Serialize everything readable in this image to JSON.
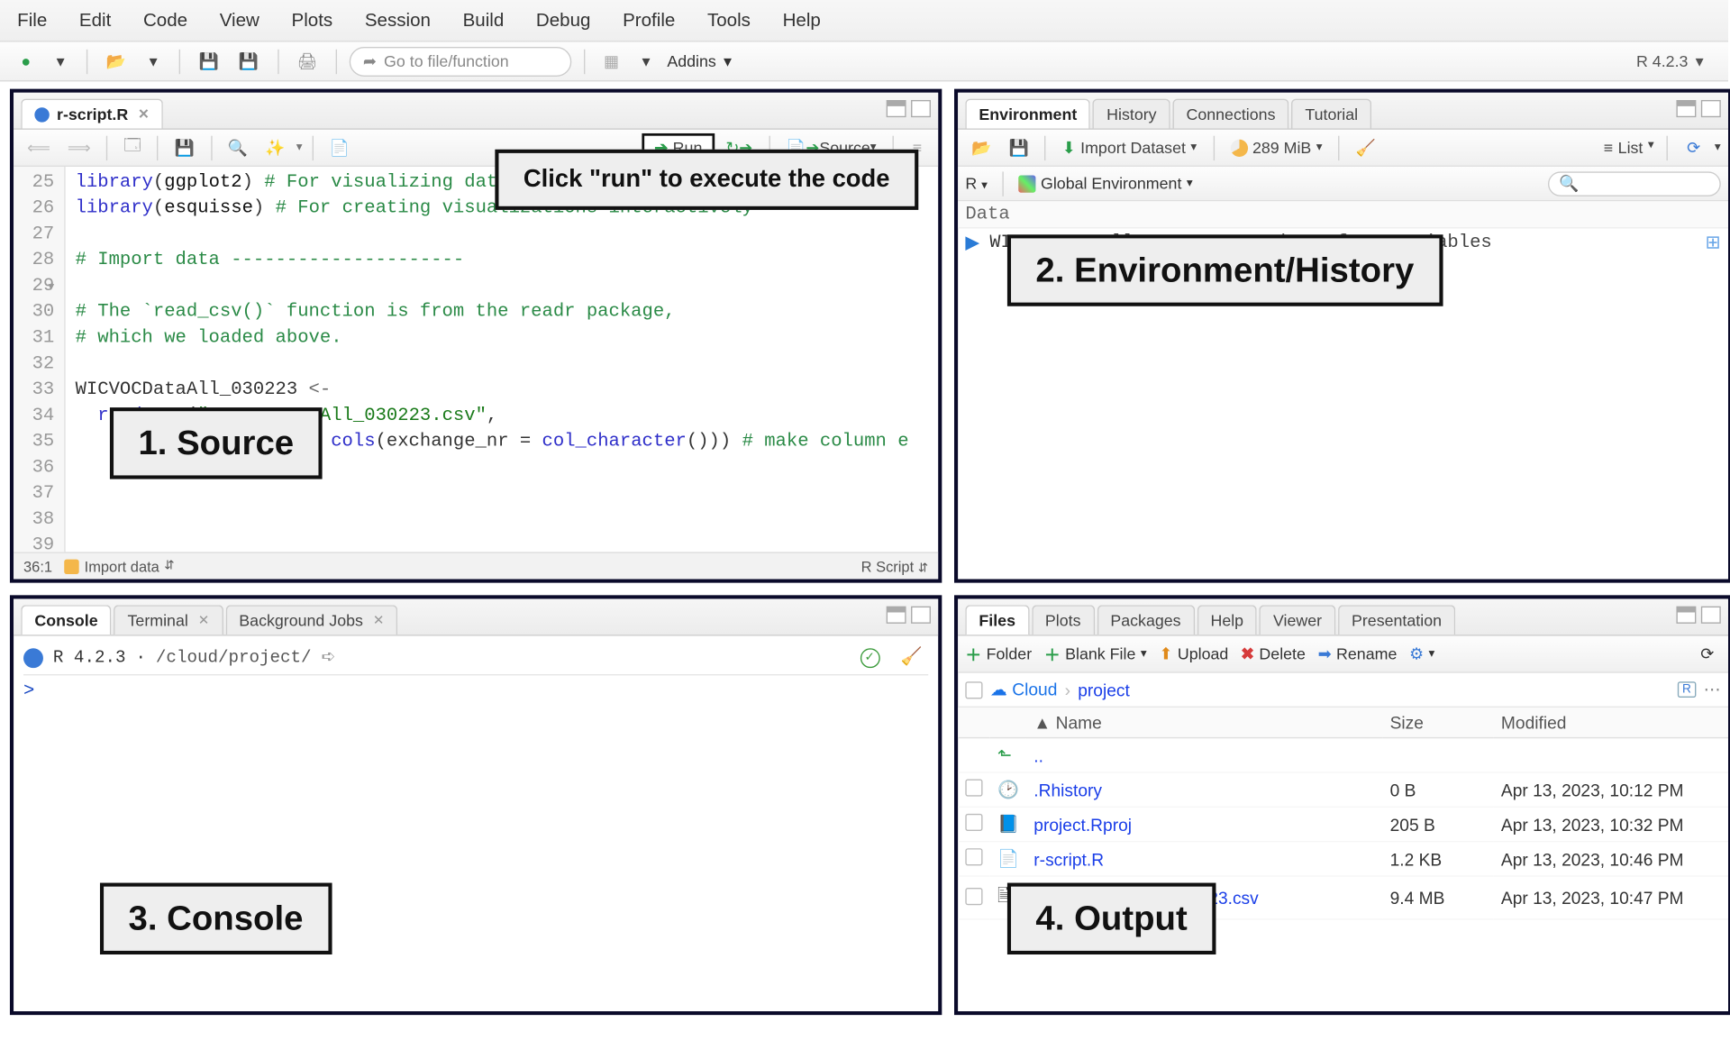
{
  "menubar": [
    "File",
    "Edit",
    "Code",
    "View",
    "Plots",
    "Session",
    "Build",
    "Debug",
    "Profile",
    "Tools",
    "Help"
  ],
  "toolbar": {
    "goto_placeholder": "Go to file/function",
    "addins": "Addins",
    "r_version": "R 4.2.3"
  },
  "source": {
    "tab": "r-script.R",
    "run": "Run",
    "source_btn": "Source",
    "status_pos": "36:1",
    "status_section": "Import data",
    "status_type": "R Script",
    "lines": [
      {
        "n": 25,
        "html": "<span class='cm-fn'>library</span>(<span class='cm-pkg'>ggplot2</span>) <span class='cm-com'># For visualizing data</span>"
      },
      {
        "n": 26,
        "html": "<span class='cm-fn'>library</span>(<span class='cm-pkg'>esquisse</span>) <span class='cm-com'># For creating visualizations interactively</span>"
      },
      {
        "n": 27,
        "html": ""
      },
      {
        "n": 28,
        "html": "<span class='cm-sect'># Import data ---------------------</span>",
        "marker": "▾"
      },
      {
        "n": 29,
        "html": ""
      },
      {
        "n": 30,
        "html": "<span class='cm-com'># The `read_csv()` function is from the readr package,</span>"
      },
      {
        "n": 31,
        "html": "<span class='cm-com'># which we loaded above.</span>"
      },
      {
        "n": 32,
        "html": ""
      },
      {
        "n": 33,
        "html": "WICVOCDataAll_030223 <span class='cm-op'>&lt;-</span>"
      },
      {
        "n": 34,
        "html": "  <span class='cm-fn'>read_csv</span>(<span class='cm-str'>\"WICVOCDataAll_030223.csv\"</span>,"
      },
      {
        "n": 35,
        "html": "           col_types = <span class='cm-fn'>cols</span>(exchange_nr = <span class='cm-fn'>col_character</span>())) <span class='cm-com'># make column e</span>"
      },
      {
        "n": 36,
        "html": ""
      },
      {
        "n": 37,
        "html": ""
      },
      {
        "n": 38,
        "html": ""
      },
      {
        "n": 39,
        "html": ""
      }
    ]
  },
  "callouts": {
    "run_hint": "Click \"run\" to execute the code",
    "source": "1. Source",
    "env": "2. Environment/History",
    "console": "3. Console",
    "output": "4. Output"
  },
  "env": {
    "tabs": [
      "Environment",
      "History",
      "Connections",
      "Tutorial"
    ],
    "import": "Import Dataset",
    "mem": "289 MiB",
    "list": "List",
    "scope_r": "R",
    "scope_global": "Global Environment",
    "section": "Data",
    "obj_name": "WICVOCDataAll_03…",
    "obj_detail": "22878 obs. of 57 variables"
  },
  "console": {
    "tabs": [
      "Console",
      "Terminal",
      "Background Jobs"
    ],
    "version": "R 4.2.3",
    "path": "/cloud/project/",
    "prompt": ">"
  },
  "files": {
    "tabs": [
      "Files",
      "Plots",
      "Packages",
      "Help",
      "Viewer",
      "Presentation"
    ],
    "btns": {
      "folder": "Folder",
      "blank": "Blank File",
      "upload": "Upload",
      "delete": "Delete",
      "rename": "Rename"
    },
    "crumbs": {
      "cloud": "Cloud",
      "project": "project"
    },
    "columns": [
      "Name",
      "Size",
      "Modified"
    ],
    "up": "..",
    "rows": [
      {
        "icon": "history",
        "name": ".Rhistory",
        "size": "0 B",
        "mod": "Apr 13, 2023, 10:12 PM"
      },
      {
        "icon": "rproj",
        "name": "project.Rproj",
        "size": "205 B",
        "mod": "Apr 13, 2023, 10:32 PM"
      },
      {
        "icon": "rscript",
        "name": "r-script.R",
        "size": "1.2 KB",
        "mod": "Apr 13, 2023, 10:46 PM"
      },
      {
        "icon": "csv",
        "name": "WICVOCDataAll_030223.csv",
        "size": "9.4 MB",
        "mod": "Apr 13, 2023, 10:47 PM"
      }
    ]
  },
  "colors": {
    "border": "#0a0a2a",
    "link": "#1a3ee8",
    "run_green": "#2a9d4a"
  }
}
